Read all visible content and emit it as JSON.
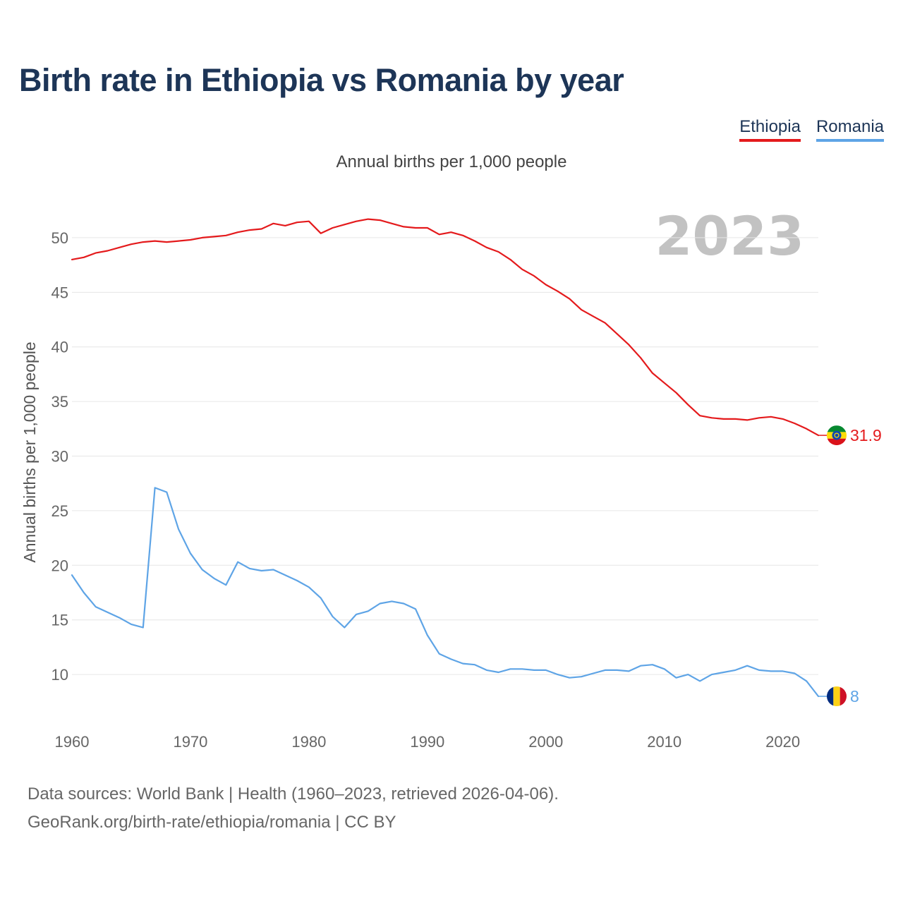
{
  "chart_data": {
    "type": "line",
    "title": "Birth rate in Ethiopia vs Romania by year",
    "subtitle": "Annual births per 1,000 people",
    "ylabel": "Annual births per 1,000 people",
    "xlabel": "",
    "x": [
      1960,
      1961,
      1962,
      1963,
      1964,
      1965,
      1966,
      1967,
      1968,
      1969,
      1970,
      1971,
      1972,
      1973,
      1974,
      1975,
      1976,
      1977,
      1978,
      1979,
      1980,
      1981,
      1982,
      1983,
      1984,
      1985,
      1986,
      1987,
      1988,
      1989,
      1990,
      1991,
      1992,
      1993,
      1994,
      1995,
      1996,
      1997,
      1998,
      1999,
      2000,
      2001,
      2002,
      2003,
      2004,
      2005,
      2006,
      2007,
      2008,
      2009,
      2010,
      2011,
      2012,
      2013,
      2014,
      2015,
      2016,
      2017,
      2018,
      2019,
      2020,
      2021,
      2022,
      2023
    ],
    "xlim": [
      1960,
      2023
    ],
    "ylim": [
      6,
      54
    ],
    "xticks": [
      "1960",
      "1970",
      "1980",
      "1990",
      "2000",
      "2010",
      "2020"
    ],
    "yticks": [
      "10",
      "15",
      "20",
      "25",
      "30",
      "35",
      "40",
      "45",
      "50"
    ],
    "highlight_year": "2023",
    "grid": true,
    "legend_position": "top-right",
    "series": [
      {
        "name": "Ethiopia",
        "color": "#e41a1c",
        "flag": "ethiopia-flag",
        "end_value": "31.9",
        "values": [
          48.0,
          48.2,
          48.6,
          48.8,
          49.1,
          49.4,
          49.6,
          49.7,
          49.6,
          49.7,
          49.8,
          50.0,
          50.1,
          50.2,
          50.5,
          50.7,
          50.8,
          51.3,
          51.1,
          51.4,
          51.5,
          50.4,
          50.9,
          51.2,
          51.5,
          51.7,
          51.6,
          51.3,
          51.0,
          50.9,
          50.9,
          50.3,
          50.5,
          50.2,
          49.7,
          49.1,
          48.7,
          48.0,
          47.1,
          46.5,
          45.7,
          45.1,
          44.4,
          43.4,
          42.8,
          42.2,
          41.2,
          40.2,
          39.0,
          37.6,
          36.7,
          35.8,
          34.7,
          33.7,
          33.5,
          33.4,
          33.4,
          33.3,
          33.5,
          33.6,
          33.4,
          33.0,
          32.5,
          31.9
        ]
      },
      {
        "name": "Romania",
        "color": "#5ea4e6",
        "flag": "romania-flag",
        "end_value": "8",
        "values": [
          19.1,
          17.5,
          16.2,
          15.7,
          15.2,
          14.6,
          14.3,
          27.1,
          26.7,
          23.3,
          21.1,
          19.6,
          18.8,
          18.2,
          20.3,
          19.7,
          19.5,
          19.6,
          19.1,
          18.6,
          18.0,
          17.0,
          15.3,
          14.3,
          15.5,
          15.8,
          16.5,
          16.7,
          16.5,
          16.0,
          13.6,
          11.9,
          11.4,
          11.0,
          10.9,
          10.4,
          10.2,
          10.5,
          10.5,
          10.4,
          10.4,
          10.0,
          9.7,
          9.8,
          10.1,
          10.4,
          10.4,
          10.3,
          10.8,
          10.9,
          10.5,
          9.7,
          10.0,
          9.4,
          10.0,
          10.2,
          10.4,
          10.8,
          10.4,
          10.3,
          10.3,
          10.1,
          9.4,
          8.0
        ]
      }
    ]
  },
  "source": {
    "line1": "Data sources: World Bank | Health (1960–2023, retrieved 2026-04-06).",
    "line2": "GeoRank.org/birth-rate/ethiopia/romania | CC BY"
  }
}
